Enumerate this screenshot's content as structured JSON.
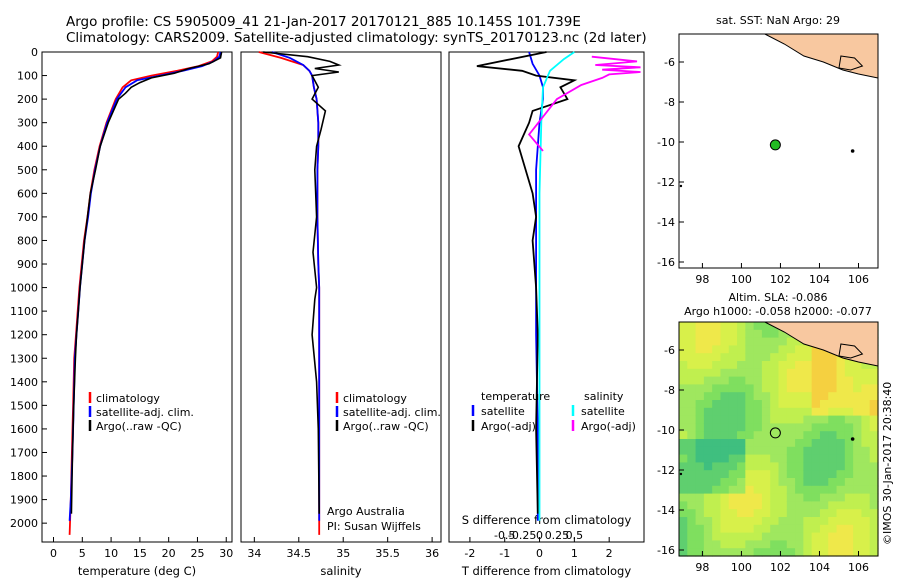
{
  "header": {
    "line1": "Argo profile: CS 5905009_41 21-Jan-2017 20170121_885 10.145S 101.739E",
    "line2": "Climatology: CARS2009. Satellite-adjusted climatology: synTS_20170123.nc (2d later)"
  },
  "colors": {
    "climatology": "#ff0000",
    "satellite": "#0000ff",
    "argo": "#000000",
    "sal_satellite": "#00ffff",
    "sal_argo": "#ff00ff",
    "land": "#f8c8a0",
    "marker": "#22bb22"
  },
  "chart_data": [
    {
      "type": "line",
      "id": "temperature",
      "xlabel": "temperature (deg C)",
      "ylabel": "",
      "xlim": [
        -2,
        31
      ],
      "ylim": [
        2080,
        0
      ],
      "xticks": [
        0,
        5,
        10,
        15,
        20,
        25,
        30
      ],
      "yticks": [
        0,
        100,
        200,
        300,
        400,
        500,
        600,
        700,
        800,
        900,
        1000,
        1100,
        1200,
        1300,
        1400,
        1500,
        1600,
        1700,
        1800,
        1900,
        2000
      ],
      "legend": [
        "climatology",
        "satellite-adj. clim.",
        "Argo(..raw -QC)"
      ],
      "series": [
        {
          "name": "climatology",
          "x": [
            28.6,
            28.4,
            27.5,
            25.2,
            21.5,
            17.0,
            13.5,
            12.0,
            10.8,
            9.2,
            8.0,
            7.1,
            6.4,
            5.9,
            5.3,
            4.9,
            4.5,
            4.2,
            3.9,
            3.6,
            3.4,
            3.2,
            3.0,
            2.8
          ],
          "y": [
            0,
            20,
            40,
            60,
            80,
            100,
            120,
            150,
            200,
            300,
            400,
            500,
            600,
            700,
            800,
            900,
            1000,
            1100,
            1200,
            1300,
            1500,
            1700,
            1900,
            2050
          ]
        },
        {
          "name": "satellite-adj. clim.",
          "x": [
            29.0,
            28.8,
            27.8,
            25.8,
            22.5,
            18.5,
            14.5,
            12.5,
            11.0,
            9.3,
            8.1,
            7.2,
            6.5,
            6.0,
            5.4,
            5.0,
            4.6,
            4.3,
            4.0,
            3.7,
            3.5,
            3.3,
            3.0,
            2.8
          ],
          "y": [
            0,
            20,
            40,
            60,
            80,
            100,
            120,
            150,
            200,
            300,
            400,
            500,
            600,
            700,
            800,
            900,
            1000,
            1100,
            1200,
            1300,
            1500,
            1700,
            1900,
            1990
          ]
        },
        {
          "name": "Argo(..raw -QC)",
          "x": [
            29.2,
            29.0,
            27.0,
            23.5,
            21.0,
            17.0,
            15.0,
            13.5,
            12.5,
            11.3,
            9.5,
            8.1,
            7.3,
            6.4,
            5.9,
            5.4,
            5.0,
            4.6,
            4.3,
            4.0,
            3.8,
            3.5,
            3.3,
            3.1
          ],
          "y": [
            0,
            25,
            50,
            70,
            90,
            110,
            130,
            150,
            175,
            200,
            300,
            400,
            500,
            600,
            700,
            800,
            900,
            1000,
            1100,
            1200,
            1300,
            1500,
            1700,
            1960
          ]
        }
      ]
    },
    {
      "type": "line",
      "id": "salinity",
      "xlabel": "salinity",
      "ylabel": "",
      "xlim": [
        33.85,
        36.1
      ],
      "ylim": [
        2080,
        0
      ],
      "xticks": [
        34,
        34.5,
        35,
        35.5,
        36
      ],
      "legend": [
        "climatology",
        "satellite-adj. clim.",
        "Argo(..raw -QC)"
      ],
      "annotations": [
        "Argo Australia",
        "PI: Susan Wijffels"
      ],
      "series": [
        {
          "name": "climatology",
          "x": [
            34.05,
            34.3,
            34.55,
            34.62,
            34.65,
            34.67,
            34.7,
            34.72,
            34.72,
            34.71,
            34.71,
            34.72,
            34.73,
            34.73,
            34.73,
            34.73,
            34.73,
            34.73,
            34.73
          ],
          "y": [
            0,
            25,
            55,
            80,
            100,
            150,
            200,
            300,
            400,
            500,
            700,
            900,
            1000,
            1200,
            1400,
            1600,
            1800,
            1900,
            2050
          ]
        },
        {
          "name": "satellite-adj. clim.",
          "x": [
            34.2,
            34.4,
            34.55,
            34.62,
            34.65,
            34.67,
            34.7,
            34.72,
            34.72,
            34.71,
            34.71,
            34.72,
            34.73,
            34.73,
            34.73,
            34.73,
            34.73,
            34.73,
            34.73
          ],
          "y": [
            0,
            25,
            55,
            80,
            100,
            150,
            200,
            300,
            400,
            500,
            700,
            900,
            1000,
            1200,
            1400,
            1600,
            1800,
            1900,
            1990
          ]
        },
        {
          "name": "Argo(..raw -QC)",
          "x": [
            34.1,
            34.6,
            34.85,
            34.95,
            34.68,
            34.95,
            34.65,
            34.72,
            34.65,
            34.8,
            34.75,
            34.7,
            34.68,
            34.7,
            34.66,
            34.7,
            34.68,
            34.65,
            34.7,
            34.72,
            34.73
          ],
          "y": [
            0,
            20,
            40,
            55,
            70,
            85,
            100,
            150,
            200,
            250,
            330,
            400,
            500,
            700,
            850,
            1000,
            1050,
            1200,
            1400,
            1600,
            1960
          ]
        }
      ]
    },
    {
      "type": "line",
      "id": "difference",
      "xlabel": "T difference from climatology",
      "xlabel2": "S difference from climatology",
      "xlim": [
        -2.6,
        3.0
      ],
      "ylim": [
        2080,
        0
      ],
      "xticks": [
        -2,
        -1,
        0,
        1,
        2
      ],
      "xticks2": [
        -0.5,
        -0.25,
        0,
        0.25,
        0.5
      ],
      "legend_headers": [
        "temperature",
        "salinity"
      ],
      "legend": [
        "satellite",
        "Argo(-adj)",
        "satellite",
        "Argo(-adj)"
      ],
      "series": [
        {
          "name": "satellite",
          "x": [
            -0.3,
            -0.2,
            0,
            0.1,
            0.1,
            0,
            -0.1,
            -0.1,
            -0.1,
            -0.05,
            -0.05
          ],
          "y": [
            0,
            50,
            100,
            150,
            200,
            300,
            500,
            800,
            1200,
            1600,
            1990
          ]
        },
        {
          "name": "Argo(-adj)",
          "x": [
            0.2,
            -1.8,
            -0.5,
            -0.1,
            1.0,
            0.6,
            0.8,
            -0.2,
            -0.3,
            -0.6,
            -0.2,
            -0.1,
            -0.2,
            -0.1,
            -0.05,
            -0.1,
            -0.05
          ],
          "y": [
            0,
            60,
            80,
            100,
            120,
            150,
            200,
            250,
            300,
            400,
            600,
            700,
            800,
            1000,
            1200,
            1600,
            1960
          ]
        },
        {
          "name": "satellite",
          "x": [
            1.0,
            0.7,
            0.3,
            0.1,
            0.05,
            0,
            0,
            0
          ],
          "y": [
            0,
            30,
            80,
            150,
            300,
            600,
            1200,
            1990
          ]
        },
        {
          "name": "Argo(-adj)",
          "x": [
            1.5,
            2.8,
            1.6,
            2.9,
            1.8,
            2.9,
            2.0,
            1.8,
            1.2,
            0.5,
            -0.3,
            0.1
          ],
          "y": [
            20,
            40,
            55,
            65,
            75,
            85,
            95,
            110,
            140,
            200,
            350,
            420
          ]
        }
      ]
    }
  ],
  "maps": {
    "sst": {
      "title": "sat. SST: NaN Argo: 29",
      "xticks": [
        98,
        100,
        102,
        104,
        106
      ],
      "yticks": [
        -6,
        -8,
        -10,
        -12,
        -14,
        -16
      ],
      "xlim": [
        96.8,
        107
      ],
      "ylim": [
        -16.3,
        -4.6
      ],
      "float": [
        101.739,
        -10.145
      ]
    },
    "sla": {
      "title1": "Altim. SLA: -0.086",
      "title2": "Argo h1000: -0.058 h2000: -0.077",
      "xticks": [
        98,
        100,
        102,
        104,
        106
      ],
      "yticks": [
        -6,
        -8,
        -10,
        -12,
        -14,
        -16
      ],
      "xlim": [
        96.8,
        107
      ],
      "ylim": [
        -16.3,
        -4.6
      ],
      "float": [
        101.739,
        -10.145
      ]
    }
  },
  "stamp": "©IMOS 30-Jan-2017 20:38:40"
}
